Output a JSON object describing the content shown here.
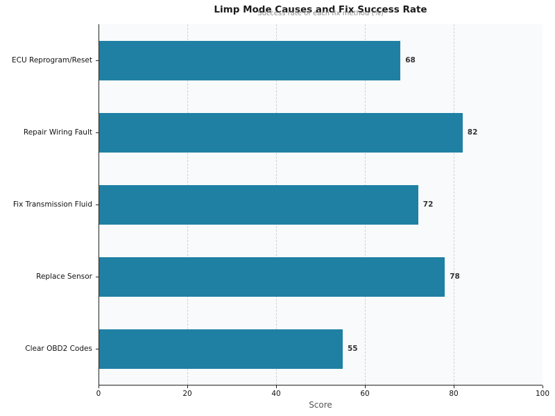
{
  "chart_data": {
    "type": "bar",
    "orientation": "horizontal",
    "title": "Limp Mode Causes and Fix Success Rate",
    "subtitle": "Success rate of each fix method (%)",
    "xlabel": "Score",
    "ylabel": "",
    "xlim": [
      0,
      100
    ],
    "xticks": [
      "0",
      "20",
      "40",
      "60",
      "80",
      "100"
    ],
    "grid": "vertical dashed",
    "categories": [
      "ECU Reprogram/Reset",
      "Repair Wiring Fault",
      "Fix Transmission Fluid",
      "Replace Sensor",
      "Clear OBD2 Codes"
    ],
    "values": [
      68,
      82,
      72,
      78,
      55
    ],
    "value_labels": [
      "68",
      "82",
      "72",
      "78",
      "55"
    ],
    "bar_color": "#1f80a4"
  }
}
